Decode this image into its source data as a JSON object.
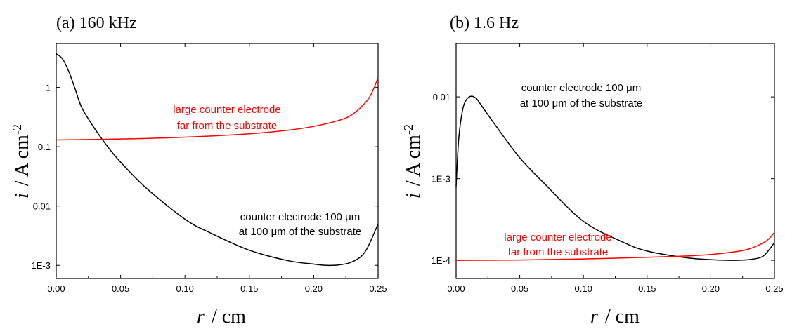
{
  "chart_data": [
    {
      "type": "line",
      "title": "(a) 160 kHz",
      "xlabel": "r",
      "xlabel_unit": "/ cm",
      "ylabel": "i",
      "ylabel_unit": "/ A cm",
      "ylabel_exp": "-2",
      "y_scale": "log",
      "xlim": [
        0.0,
        0.25
      ],
      "ylim": [
        0.0006,
        5.5
      ],
      "grid": false,
      "x_ticks": [
        "0.00",
        "0.05",
        "0.10",
        "0.15",
        "0.20",
        "0.25"
      ],
      "y_ticks": [
        {
          "value": 1,
          "label": "1"
        },
        {
          "value": 0.1,
          "label": "0.1"
        },
        {
          "value": 0.01,
          "label": "0.01"
        },
        {
          "value": 0.001,
          "label": "1E-3"
        }
      ],
      "series": [
        {
          "color": "#000000",
          "x": [
            0.0,
            0.005,
            0.01,
            0.015,
            0.02,
            0.03,
            0.04,
            0.05,
            0.07,
            0.1,
            0.12,
            0.15,
            0.18,
            0.2,
            0.21,
            0.22,
            0.23,
            0.24,
            0.25
          ],
          "y": [
            3.7,
            3.0,
            1.8,
            0.9,
            0.45,
            0.2,
            0.1,
            0.055,
            0.02,
            0.006,
            0.0035,
            0.0018,
            0.0012,
            0.00105,
            0.001,
            0.00102,
            0.00115,
            0.0017,
            0.005
          ]
        },
        {
          "color": "#ff0000",
          "x": [
            0.0,
            0.05,
            0.1,
            0.15,
            0.18,
            0.2,
            0.22,
            0.23,
            0.24,
            0.245,
            0.25
          ],
          "y": [
            0.13,
            0.135,
            0.145,
            0.165,
            0.19,
            0.22,
            0.28,
            0.35,
            0.55,
            0.8,
            1.45
          ]
        }
      ],
      "annotations": [
        {
          "lines": [
            "large counter electrode",
            "far from the substrate"
          ],
          "color": "#ff0000"
        },
        {
          "lines": [
            "counter electrode 100 μm",
            "at 100 μm of the substrate"
          ],
          "color": "#000000"
        }
      ]
    },
    {
      "type": "line",
      "title": "(b) 1.6 Hz",
      "xlabel": "r",
      "xlabel_unit": "/ cm",
      "ylabel": "i",
      "ylabel_unit": "/ A cm",
      "ylabel_exp": "-2",
      "y_scale": "log",
      "xlim": [
        0.0,
        0.25
      ],
      "ylim": [
        6e-05,
        0.045
      ],
      "grid": false,
      "x_ticks": [
        "0.00",
        "0.05",
        "0.10",
        "0.15",
        "0.20",
        "0.25"
      ],
      "y_ticks": [
        {
          "value": 0.01,
          "label": "0.01"
        },
        {
          "value": 0.001,
          "label": "1E-3"
        },
        {
          "value": 0.0001,
          "label": "1E-4"
        }
      ],
      "series": [
        {
          "color": "#000000",
          "x": [
            0.0,
            0.002,
            0.005,
            0.008,
            0.012,
            0.016,
            0.02,
            0.03,
            0.05,
            0.07,
            0.1,
            0.13,
            0.15,
            0.18,
            0.2,
            0.215,
            0.23,
            0.24,
            0.245,
            0.25
          ],
          "y": [
            0.0008,
            0.003,
            0.0068,
            0.0092,
            0.0102,
            0.0095,
            0.0078,
            0.0047,
            0.0018,
            0.00085,
            0.0003,
            0.00017,
            0.00013,
            0.000108,
            0.000102,
            0.0001,
            0.000102,
            0.00011,
            0.00013,
            0.000165
          ]
        },
        {
          "color": "#ff0000",
          "x": [
            0.0,
            0.05,
            0.1,
            0.15,
            0.18,
            0.2,
            0.22,
            0.23,
            0.24,
            0.245,
            0.25
          ],
          "y": [
            0.0001,
            0.000101,
            0.000104,
            0.000109,
            0.000113,
            0.000118,
            0.000128,
            0.000138,
            0.00016,
            0.00018,
            0.00022
          ]
        }
      ],
      "annotations": [
        {
          "lines": [
            "counter electrode 100 μm",
            "at 100 μm of the substrate"
          ],
          "color": "#000000"
        },
        {
          "lines": [
            "large counter electrode",
            "far from the substrate"
          ],
          "color": "#ff0000"
        }
      ]
    }
  ]
}
